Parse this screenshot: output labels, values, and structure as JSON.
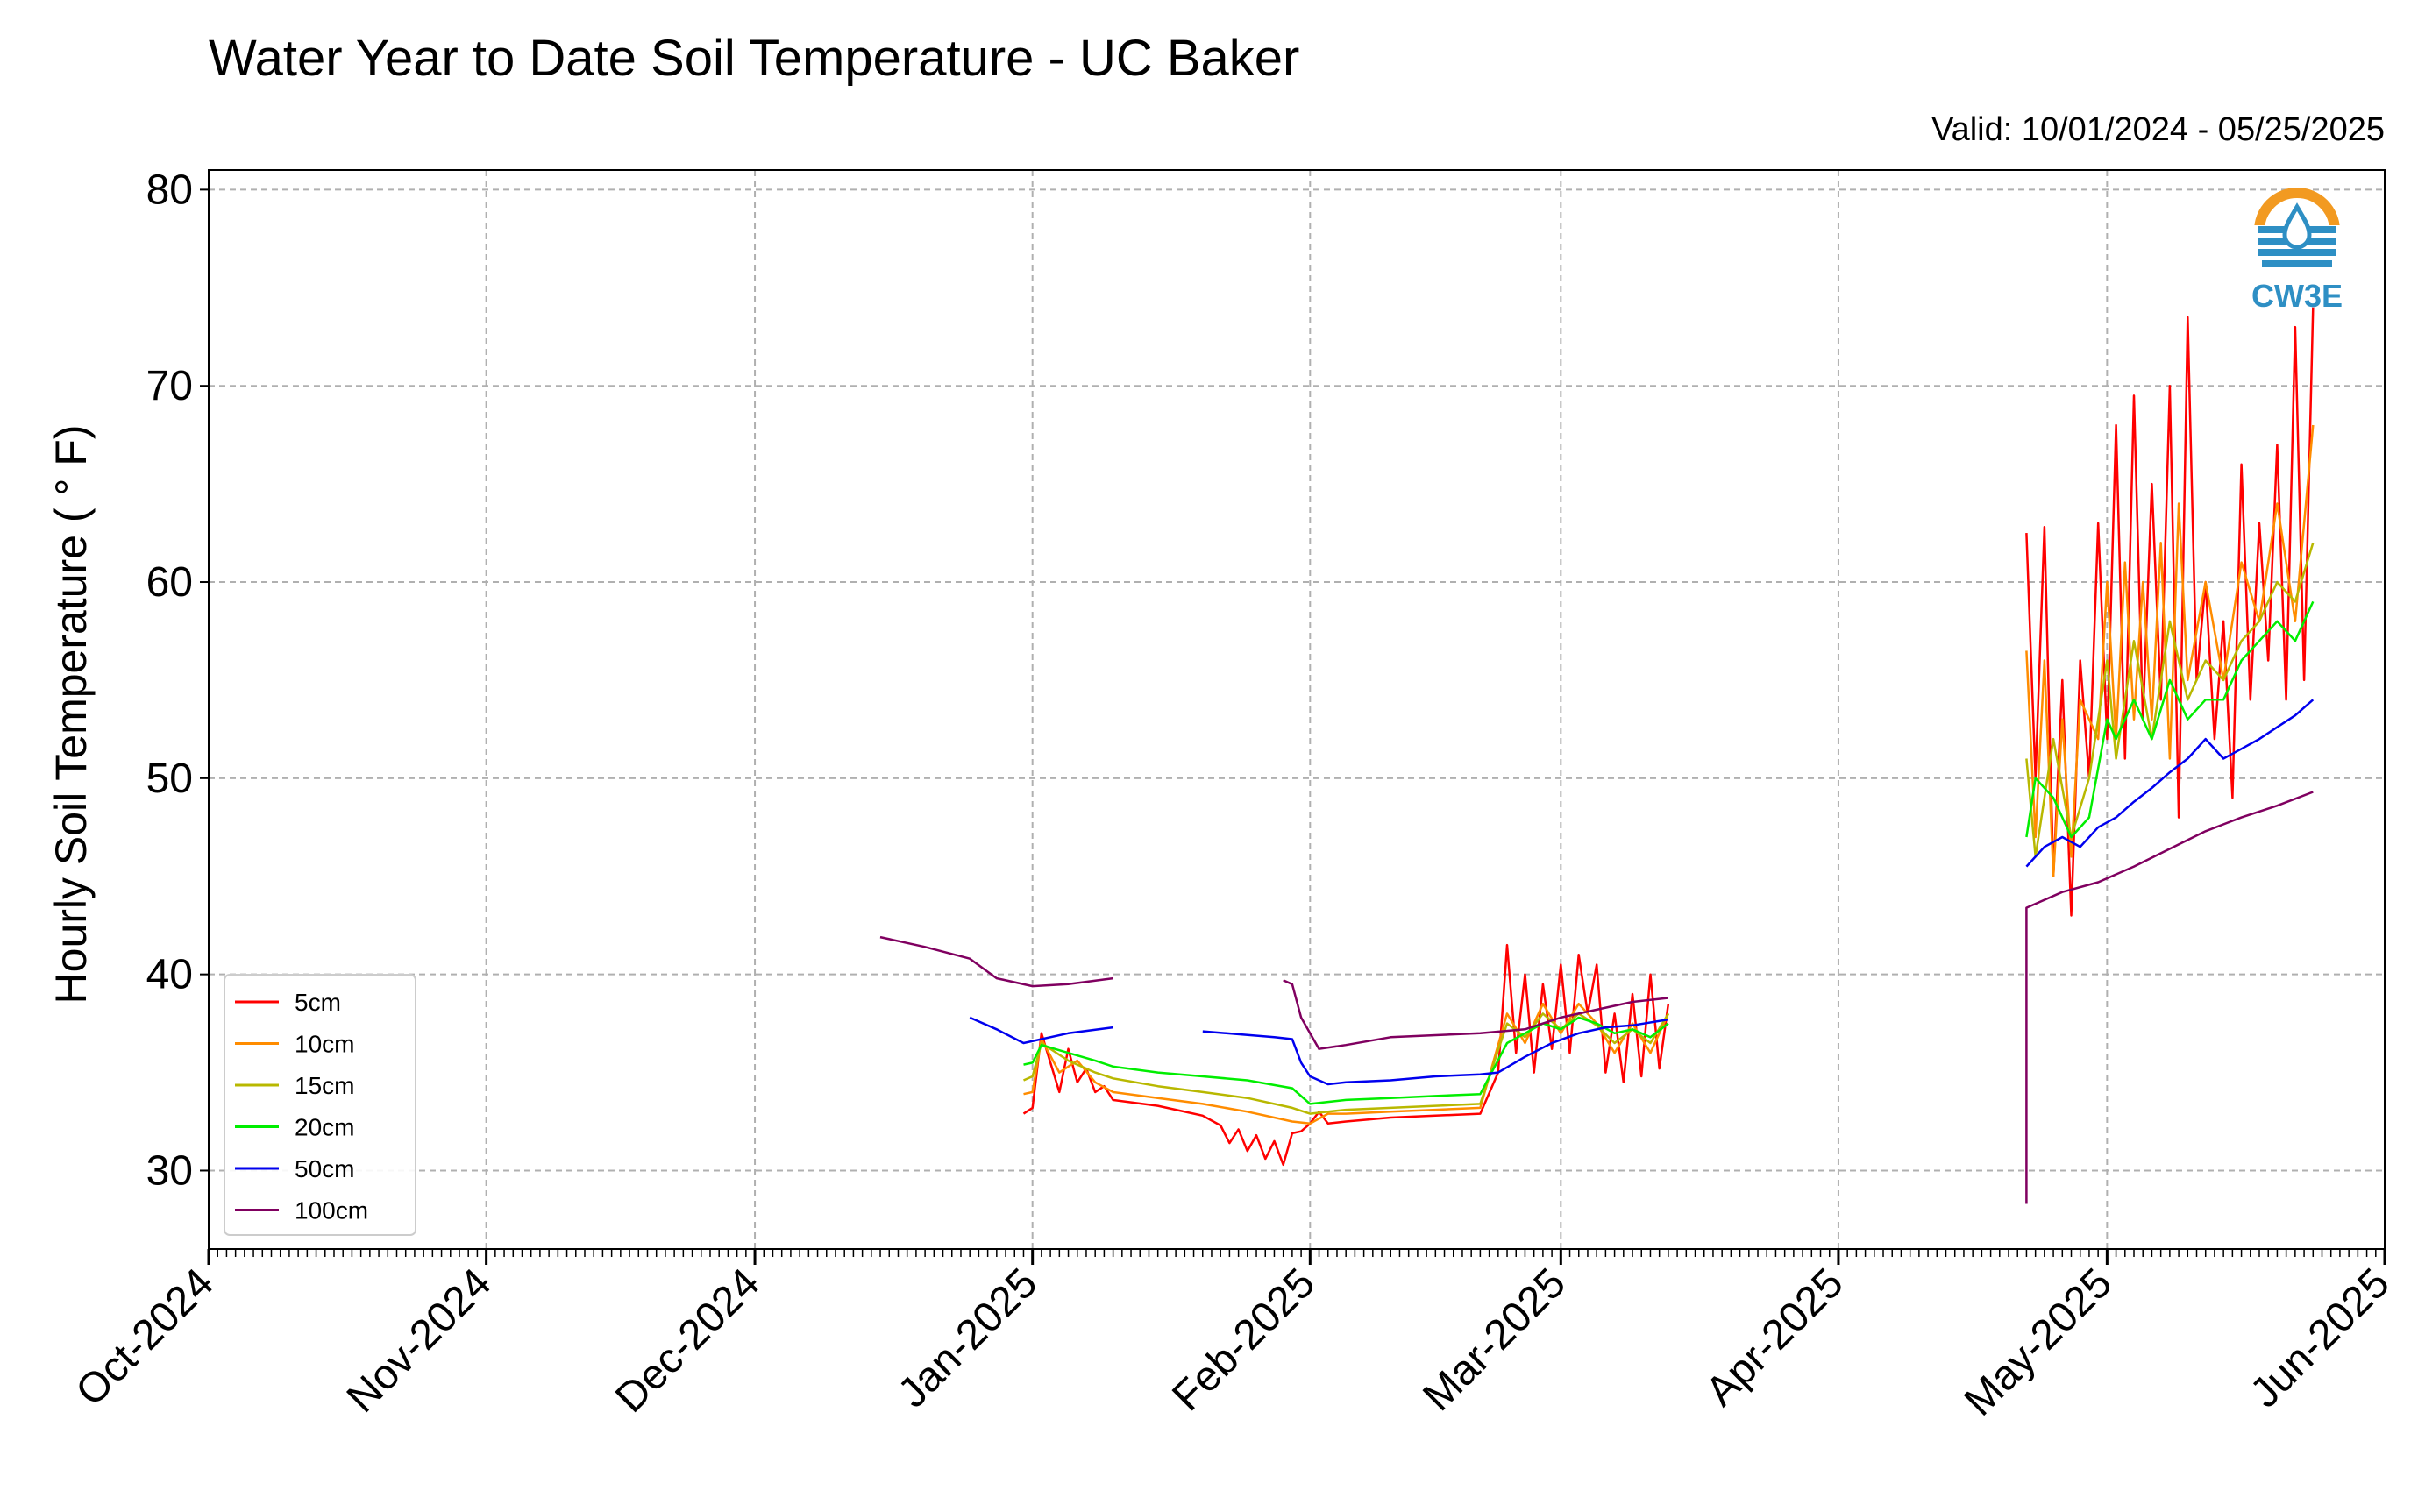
{
  "chart_data": {
    "type": "line",
    "title": "Water Year to Date Soil Temperature - UC Baker",
    "subtitle": "Valid: 10/01/2024 - 05/25/2025",
    "ylabel": "Hourly Soil Temperature ( ° F)",
    "xlabel": "",
    "ylim": [
      26,
      81
    ],
    "yticks": [
      30,
      40,
      50,
      60,
      70,
      80
    ],
    "xlim": [
      "2024-10-01",
      "2025-06-01"
    ],
    "xticks": [
      "Oct-2024",
      "Nov-2024",
      "Dec-2024",
      "Jan-2025",
      "Feb-2025",
      "Mar-2025",
      "Apr-2025",
      "May-2025",
      "Jun-2025"
    ],
    "grid": true,
    "legend_position": "lower-left",
    "series": [
      {
        "name": "5cm",
        "color": "#ff0000",
        "x": [
          "2024-12-15",
          "2024-12-31",
          "2025-01-01",
          "2025-01-02",
          "2025-01-04",
          "2025-01-05",
          "2025-01-06",
          "2025-01-07",
          "2025-01-08",
          "2025-01-09",
          "2025-01-10",
          "2025-01-15",
          "2025-01-20",
          "2025-01-22",
          "2025-01-23",
          "2025-01-24",
          "2025-01-25",
          "2025-01-26",
          "2025-01-27",
          "2025-01-28",
          "2025-01-29",
          "2025-01-30",
          "2025-01-31",
          "2025-02-01",
          "2025-02-02",
          "2025-02-03",
          "2025-02-05",
          "2025-02-10",
          "2025-02-15",
          "2025-02-20",
          "2025-02-22",
          "2025-02-23",
          "2025-02-24",
          "2025-02-25",
          "2025-02-26",
          "2025-02-27",
          "2025-02-28",
          "2025-03-01",
          "2025-03-02",
          "2025-03-03",
          "2025-03-04",
          "2025-03-05",
          "2025-03-06",
          "2025-03-07",
          "2025-03-08",
          "2025-03-09",
          "2025-03-10",
          "2025-03-11",
          "2025-03-12",
          "2025-03-13",
          "2025-04-22",
          "2025-04-23",
          "2025-04-24",
          "2025-04-25",
          "2025-04-26",
          "2025-04-27",
          "2025-04-28",
          "2025-04-29",
          "2025-04-30",
          "2025-05-01",
          "2025-05-02",
          "2025-05-03",
          "2025-05-04",
          "2025-05-05",
          "2025-05-06",
          "2025-05-07",
          "2025-05-08",
          "2025-05-09",
          "2025-05-10",
          "2025-05-11",
          "2025-05-12",
          "2025-05-13",
          "2025-05-14",
          "2025-05-15",
          "2025-05-16",
          "2025-05-17",
          "2025-05-18",
          "2025-05-19",
          "2025-05-20",
          "2025-05-21",
          "2025-05-22",
          "2025-05-23",
          "2025-05-24"
        ],
        "y": [
          32.8,
          32.9,
          33.2,
          37.0,
          34.0,
          36.2,
          34.5,
          35.2,
          34.0,
          34.3,
          33.6,
          33.3,
          32.8,
          32.3,
          31.4,
          32.1,
          31.0,
          31.8,
          30.6,
          31.5,
          30.3,
          31.9,
          32.0,
          32.4,
          33.0,
          32.4,
          32.5,
          32.7,
          32.8,
          32.9,
          35.0,
          41.5,
          36.0,
          40.0,
          35.0,
          39.5,
          36.2,
          40.5,
          36.0,
          41.0,
          38.0,
          40.5,
          35.0,
          38.0,
          34.5,
          39.0,
          34.8,
          40.0,
          35.2,
          38.5,
          62.5,
          50.0,
          62.8,
          45.0,
          55.0,
          43.0,
          56.0,
          50.0,
          63.0,
          52.0,
          68.0,
          51.0,
          69.5,
          53.0,
          65.0,
          54.0,
          70.0,
          48.0,
          73.5,
          55.0,
          60.0,
          52.0,
          58.0,
          49.0,
          66.0,
          54.0,
          63.0,
          56.0,
          67.0,
          54.0,
          73.0,
          55.0,
          74.0
        ]
      },
      {
        "name": "10cm",
        "color": "#ff8c00",
        "x": [
          "2024-12-15",
          "2024-12-31",
          "2025-01-01",
          "2025-01-02",
          "2025-01-04",
          "2025-01-06",
          "2025-01-08",
          "2025-01-10",
          "2025-01-15",
          "2025-01-20",
          "2025-01-25",
          "2025-01-30",
          "2025-02-01",
          "2025-02-03",
          "2025-02-05",
          "2025-02-10",
          "2025-02-15",
          "2025-02-20",
          "2025-02-23",
          "2025-02-25",
          "2025-02-27",
          "2025-03-01",
          "2025-03-03",
          "2025-03-05",
          "2025-03-07",
          "2025-03-09",
          "2025-03-11",
          "2025-03-13",
          "2025-04-22",
          "2025-04-23",
          "2025-04-24",
          "2025-04-25",
          "2025-04-26",
          "2025-04-27",
          "2025-04-28",
          "2025-04-30",
          "2025-05-01",
          "2025-05-02",
          "2025-05-03",
          "2025-05-04",
          "2025-05-05",
          "2025-05-06",
          "2025-05-07",
          "2025-05-08",
          "2025-05-09",
          "2025-05-10",
          "2025-05-12",
          "2025-05-14",
          "2025-05-16",
          "2025-05-18",
          "2025-05-20",
          "2025-05-22",
          "2025-05-24"
        ],
        "y": [
          33.8,
          33.9,
          34.0,
          36.7,
          35.0,
          35.6,
          34.5,
          34.0,
          33.7,
          33.4,
          33.0,
          32.5,
          32.4,
          32.9,
          32.9,
          33.0,
          33.1,
          33.2,
          38.0,
          36.5,
          38.5,
          37.0,
          38.5,
          37.5,
          36.0,
          37.5,
          36.0,
          38.0,
          56.5,
          47.0,
          56.0,
          45.0,
          53.0,
          46.0,
          54.0,
          52.0,
          60.0,
          52.0,
          61.0,
          53.0,
          60.0,
          53.0,
          62.0,
          51.0,
          64.0,
          55.0,
          60.0,
          55.0,
          61.0,
          58.0,
          64.0,
          58.0,
          68.0
        ]
      },
      {
        "name": "15cm",
        "color": "#b8b800",
        "x": [
          "2024-12-15",
          "2024-12-31",
          "2025-01-01",
          "2025-01-02",
          "2025-01-05",
          "2025-01-08",
          "2025-01-10",
          "2025-01-15",
          "2025-01-20",
          "2025-01-25",
          "2025-01-30",
          "2025-02-01",
          "2025-02-03",
          "2025-02-05",
          "2025-02-10",
          "2025-02-15",
          "2025-02-20",
          "2025-02-23",
          "2025-02-25",
          "2025-02-27",
          "2025-03-01",
          "2025-03-03",
          "2025-03-05",
          "2025-03-07",
          "2025-03-09",
          "2025-03-11",
          "2025-03-13",
          "2025-04-22",
          "2025-04-23",
          "2025-04-25",
          "2025-04-27",
          "2025-04-29",
          "2025-05-01",
          "2025-05-02",
          "2025-05-04",
          "2025-05-06",
          "2025-05-08",
          "2025-05-10",
          "2025-05-12",
          "2025-05-14",
          "2025-05-16",
          "2025-05-18",
          "2025-05-20",
          "2025-05-22",
          "2025-05-24"
        ],
        "y": [
          34.6,
          34.6,
          34.8,
          36.5,
          35.6,
          35.0,
          34.7,
          34.3,
          34.0,
          33.7,
          33.2,
          32.9,
          33.0,
          33.1,
          33.2,
          33.3,
          33.4,
          37.5,
          36.8,
          38.0,
          37.2,
          38.0,
          37.4,
          36.5,
          37.2,
          36.5,
          38.0,
          51.0,
          46.0,
          52.0,
          47.0,
          50.0,
          56.0,
          51.0,
          57.0,
          52.0,
          58.0,
          54.0,
          56.0,
          55.0,
          57.0,
          58.0,
          60.0,
          59.0,
          62.0
        ]
      },
      {
        "name": "20cm",
        "color": "#00ee00",
        "x": [
          "2024-12-15",
          "2024-12-31",
          "2025-01-01",
          "2025-01-02",
          "2025-01-05",
          "2025-01-08",
          "2025-01-10",
          "2025-01-15",
          "2025-01-20",
          "2025-01-25",
          "2025-01-30",
          "2025-02-01",
          "2025-02-03",
          "2025-02-05",
          "2025-02-10",
          "2025-02-15",
          "2025-02-20",
          "2025-02-23",
          "2025-02-25",
          "2025-02-27",
          "2025-03-01",
          "2025-03-03",
          "2025-03-05",
          "2025-03-07",
          "2025-03-09",
          "2025-03-11",
          "2025-03-13",
          "2025-04-22",
          "2025-04-23",
          "2025-04-25",
          "2025-04-27",
          "2025-04-29",
          "2025-05-01",
          "2025-05-02",
          "2025-05-04",
          "2025-05-06",
          "2025-05-08",
          "2025-05-10",
          "2025-05-12",
          "2025-05-14",
          "2025-05-16",
          "2025-05-18",
          "2025-05-20",
          "2025-05-22",
          "2025-05-24"
        ],
        "y": [
          35.4,
          35.4,
          35.5,
          36.4,
          36.0,
          35.6,
          35.3,
          35.0,
          34.8,
          34.6,
          34.2,
          33.4,
          33.5,
          33.6,
          33.7,
          33.8,
          33.9,
          36.5,
          37.0,
          37.5,
          37.2,
          37.8,
          37.5,
          37.0,
          37.2,
          36.8,
          37.5,
          47.0,
          50.0,
          49.0,
          47.0,
          48.0,
          53.0,
          52.0,
          54.0,
          52.0,
          55.0,
          53.0,
          54.0,
          54.0,
          56.0,
          57.0,
          58.0,
          57.0,
          59.0
        ]
      },
      {
        "name": "50cm",
        "color": "#0000ee",
        "x": [
          "2024-12-15",
          "2024-12-25",
          "2024-12-28",
          "2024-12-31",
          "2025-01-05",
          "2025-01-10",
          "2025-01-20",
          "2025-01-28",
          "2025-01-30",
          "2025-01-31",
          "2025-02-01",
          "2025-02-03",
          "2025-02-05",
          "2025-02-10",
          "2025-02-15",
          "2025-02-20",
          "2025-02-22",
          "2025-02-25",
          "2025-02-28",
          "2025-03-03",
          "2025-03-06",
          "2025-03-09",
          "2025-03-13",
          "2025-04-22",
          "2025-04-24",
          "2025-04-26",
          "2025-04-28",
          "2025-04-30",
          "2025-05-02",
          "2025-05-04",
          "2025-05-06",
          "2025-05-08",
          "2025-05-10",
          "2025-05-12",
          "2025-05-14",
          "2025-05-16",
          "2025-05-18",
          "2025-05-20",
          "2025-05-22",
          "2025-05-24"
        ],
        "y": [
          38.1,
          37.8,
          37.2,
          36.5,
          37.0,
          37.3,
          37.1,
          36.8,
          36.7,
          35.5,
          34.8,
          34.4,
          34.5,
          34.6,
          34.8,
          34.9,
          35.0,
          35.8,
          36.5,
          37.0,
          37.3,
          37.4,
          37.7,
          45.5,
          46.5,
          47.0,
          46.5,
          47.5,
          48.0,
          48.8,
          49.5,
          50.3,
          51.0,
          52.0,
          51.0,
          51.5,
          52.0,
          52.6,
          53.2,
          54.0
        ]
      },
      {
        "name": "100cm",
        "color": "#800060",
        "x": [
          "2024-12-15",
          "2024-12-20",
          "2024-12-25",
          "2024-12-28",
          "2025-01-01",
          "2025-01-05",
          "2025-01-10",
          "2025-01-20",
          "2025-01-29",
          "2025-01-30",
          "2025-01-31",
          "2025-02-02",
          "2025-02-05",
          "2025-02-10",
          "2025-02-15",
          "2025-02-20",
          "2025-02-25",
          "2025-03-01",
          "2025-03-05",
          "2025-03-09",
          "2025-03-13",
          "2025-04-22",
          "2025-04-22",
          "2025-04-23",
          "2025-04-26",
          "2025-04-30",
          "2025-05-04",
          "2025-05-08",
          "2025-05-12",
          "2025-05-16",
          "2025-05-20",
          "2025-05-24"
        ],
        "y": [
          41.9,
          41.4,
          40.8,
          39.8,
          39.4,
          39.5,
          39.8,
          39.8,
          39.7,
          39.5,
          37.8,
          36.2,
          36.4,
          36.8,
          36.9,
          37.0,
          37.2,
          37.8,
          38.2,
          38.6,
          38.8,
          28.3,
          43.4,
          43.6,
          44.2,
          44.7,
          45.5,
          46.4,
          47.3,
          48.0,
          48.6,
          49.3
        ]
      }
    ]
  },
  "logo": {
    "text": "CW3E",
    "accent_color": "#f29a21",
    "wave_color": "#2e8fc4"
  },
  "colors": {
    "grid": "#b0b0b0",
    "axis": "#000000",
    "background": "#ffffff"
  }
}
